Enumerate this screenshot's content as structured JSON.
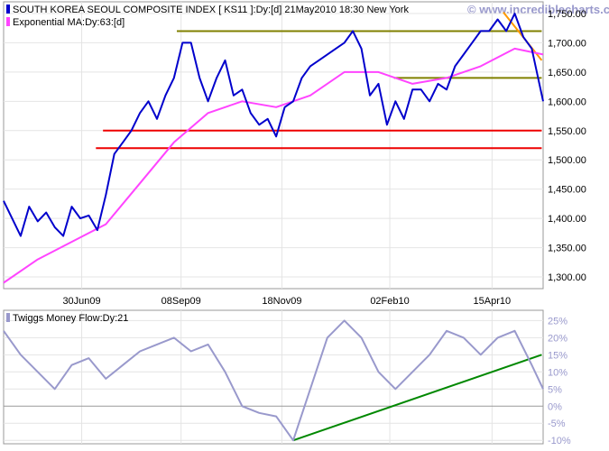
{
  "chart_data": [
    {
      "type": "line",
      "legend_position": "top-left",
      "grid": true,
      "y_axis_side": "right",
      "ylim": [
        1280,
        1770
      ],
      "yticks": [
        1300,
        1350,
        1400,
        1450,
        1500,
        1550,
        1600,
        1650,
        1700,
        1750
      ],
      "ytick_labels": [
        "1,300.00",
        "1,350.00",
        "1,400.00",
        "1,450.00",
        "1,500.00",
        "1,550.00",
        "1,600.00",
        "1,650.00",
        "1,700.00",
        "1,750.00"
      ],
      "x_range": [
        "2009-05-06",
        "2010-05-21"
      ],
      "xticks": [
        {
          "date": "2009-06-30",
          "label": "30Jun09"
        },
        {
          "date": "2009-09-08",
          "label": "08Sep09"
        },
        {
          "date": "2009-11-18",
          "label": "18Nov09"
        },
        {
          "date": "2010-02-02",
          "label": "02Feb10"
        },
        {
          "date": "2010-04-15",
          "label": "15Apr10"
        }
      ],
      "watermark": "© www.incrediblecharts.com",
      "series": [
        {
          "name": "SOUTH KOREA SEOUL COMPOSITE INDEX [ KS11 ]:Dy:[d]  21May2010 18:30 New York",
          "color": "#0000cc",
          "x": [
            "2009-05-06",
            "2009-05-12",
            "2009-05-18",
            "2009-05-24",
            "2009-05-30",
            "2009-06-05",
            "2009-06-11",
            "2009-06-17",
            "2009-06-23",
            "2009-06-29",
            "2009-07-05",
            "2009-07-11",
            "2009-07-17",
            "2009-07-23",
            "2009-07-29",
            "2009-08-04",
            "2009-08-10",
            "2009-08-16",
            "2009-08-22",
            "2009-08-28",
            "2009-09-03",
            "2009-09-09",
            "2009-09-15",
            "2009-09-21",
            "2009-09-27",
            "2009-10-03",
            "2009-10-09",
            "2009-10-15",
            "2009-10-21",
            "2009-10-27",
            "2009-11-02",
            "2009-11-08",
            "2009-11-14",
            "2009-11-20",
            "2009-11-26",
            "2009-12-02",
            "2009-12-08",
            "2009-12-14",
            "2009-12-20",
            "2009-12-26",
            "2010-01-01",
            "2010-01-07",
            "2010-01-13",
            "2010-01-19",
            "2010-01-25",
            "2010-01-31",
            "2010-02-06",
            "2010-02-12",
            "2010-02-18",
            "2010-02-24",
            "2010-03-02",
            "2010-03-08",
            "2010-03-14",
            "2010-03-20",
            "2010-03-26",
            "2010-04-01",
            "2010-04-07",
            "2010-04-13",
            "2010-04-19",
            "2010-04-25",
            "2010-05-01",
            "2010-05-07",
            "2010-05-13",
            "2010-05-21"
          ],
          "y": [
            1430,
            1400,
            1370,
            1420,
            1395,
            1410,
            1385,
            1370,
            1420,
            1400,
            1405,
            1380,
            1440,
            1510,
            1530,
            1550,
            1580,
            1600,
            1570,
            1610,
            1640,
            1700,
            1700,
            1640,
            1600,
            1640,
            1670,
            1610,
            1620,
            1580,
            1560,
            1570,
            1540,
            1590,
            1600,
            1640,
            1660,
            1670,
            1680,
            1690,
            1700,
            1720,
            1690,
            1610,
            1630,
            1560,
            1600,
            1570,
            1620,
            1620,
            1600,
            1630,
            1620,
            1660,
            1680,
            1700,
            1720,
            1720,
            1740,
            1720,
            1750,
            1710,
            1690,
            1600
          ]
        },
        {
          "name": "Exponential MA:Dy:63:[d]",
          "color": "#ff44ff",
          "x": [
            "2009-05-06",
            "2009-05-30",
            "2009-06-23",
            "2009-07-17",
            "2009-08-10",
            "2009-09-03",
            "2009-09-27",
            "2009-10-21",
            "2009-11-14",
            "2009-12-08",
            "2010-01-01",
            "2010-01-25",
            "2010-02-18",
            "2010-03-14",
            "2010-04-07",
            "2010-05-01",
            "2010-05-21"
          ],
          "y": [
            1290,
            1330,
            1360,
            1390,
            1460,
            1530,
            1580,
            1600,
            1590,
            1610,
            1650,
            1650,
            1630,
            1640,
            1660,
            1690,
            1680
          ]
        }
      ],
      "annotations": [
        {
          "kind": "hline",
          "color": "#808000",
          "x1": "2009-09-05",
          "x2": "2010-05-20",
          "y": 1720
        },
        {
          "kind": "hline",
          "color": "#808000",
          "x1": "2010-02-05",
          "x2": "2010-05-20",
          "y": 1640
        },
        {
          "kind": "hline",
          "color": "#ee0000",
          "x1": "2009-07-15",
          "x2": "2010-05-20",
          "y": 1550
        },
        {
          "kind": "hline",
          "color": "#ee0000",
          "x1": "2009-07-10",
          "x2": "2010-05-20",
          "y": 1520
        },
        {
          "kind": "trend",
          "color": "#ff9900",
          "x1": "2010-04-23",
          "y1": 1752,
          "x2": "2010-05-20",
          "y2": 1670
        }
      ]
    },
    {
      "type": "line",
      "legend_position": "top-left",
      "grid": true,
      "y_axis_side": "right",
      "ylim": [
        -11,
        28
      ],
      "yticks": [
        -10,
        -5,
        0,
        5,
        10,
        15,
        20,
        25
      ],
      "ytick_labels": [
        "-10%",
        "-5%",
        "0%",
        "5%",
        "10%",
        "15%",
        "20%",
        "25%"
      ],
      "x_range": [
        "2009-05-06",
        "2010-05-21"
      ],
      "series": [
        {
          "name": "Twiggs Money Flow:Dy:21",
          "color": "#9999cc",
          "x": [
            "2009-05-06",
            "2009-05-18",
            "2009-05-30",
            "2009-06-11",
            "2009-06-23",
            "2009-07-05",
            "2009-07-17",
            "2009-07-29",
            "2009-08-10",
            "2009-08-22",
            "2009-09-03",
            "2009-09-15",
            "2009-09-27",
            "2009-10-09",
            "2009-10-21",
            "2009-11-02",
            "2009-11-14",
            "2009-11-26",
            "2009-12-08",
            "2009-12-20",
            "2010-01-01",
            "2010-01-13",
            "2010-01-25",
            "2010-02-06",
            "2010-02-18",
            "2010-03-02",
            "2010-03-14",
            "2010-03-26",
            "2010-04-07",
            "2010-04-19",
            "2010-05-01",
            "2010-05-13",
            "2010-05-21"
          ],
          "y": [
            22,
            15,
            10,
            5,
            12,
            14,
            8,
            12,
            16,
            18,
            20,
            16,
            18,
            10,
            0,
            -2,
            -3,
            -10,
            5,
            20,
            25,
            20,
            10,
            5,
            10,
            15,
            22,
            20,
            15,
            20,
            22,
            12,
            5
          ]
        }
      ],
      "annotations": [
        {
          "kind": "zero-line",
          "color": "#999999",
          "y": 0
        },
        {
          "kind": "trend",
          "color": "#008800",
          "x1": "2009-11-26",
          "y1": -10,
          "x2": "2010-05-20",
          "y2": 15
        }
      ]
    }
  ]
}
